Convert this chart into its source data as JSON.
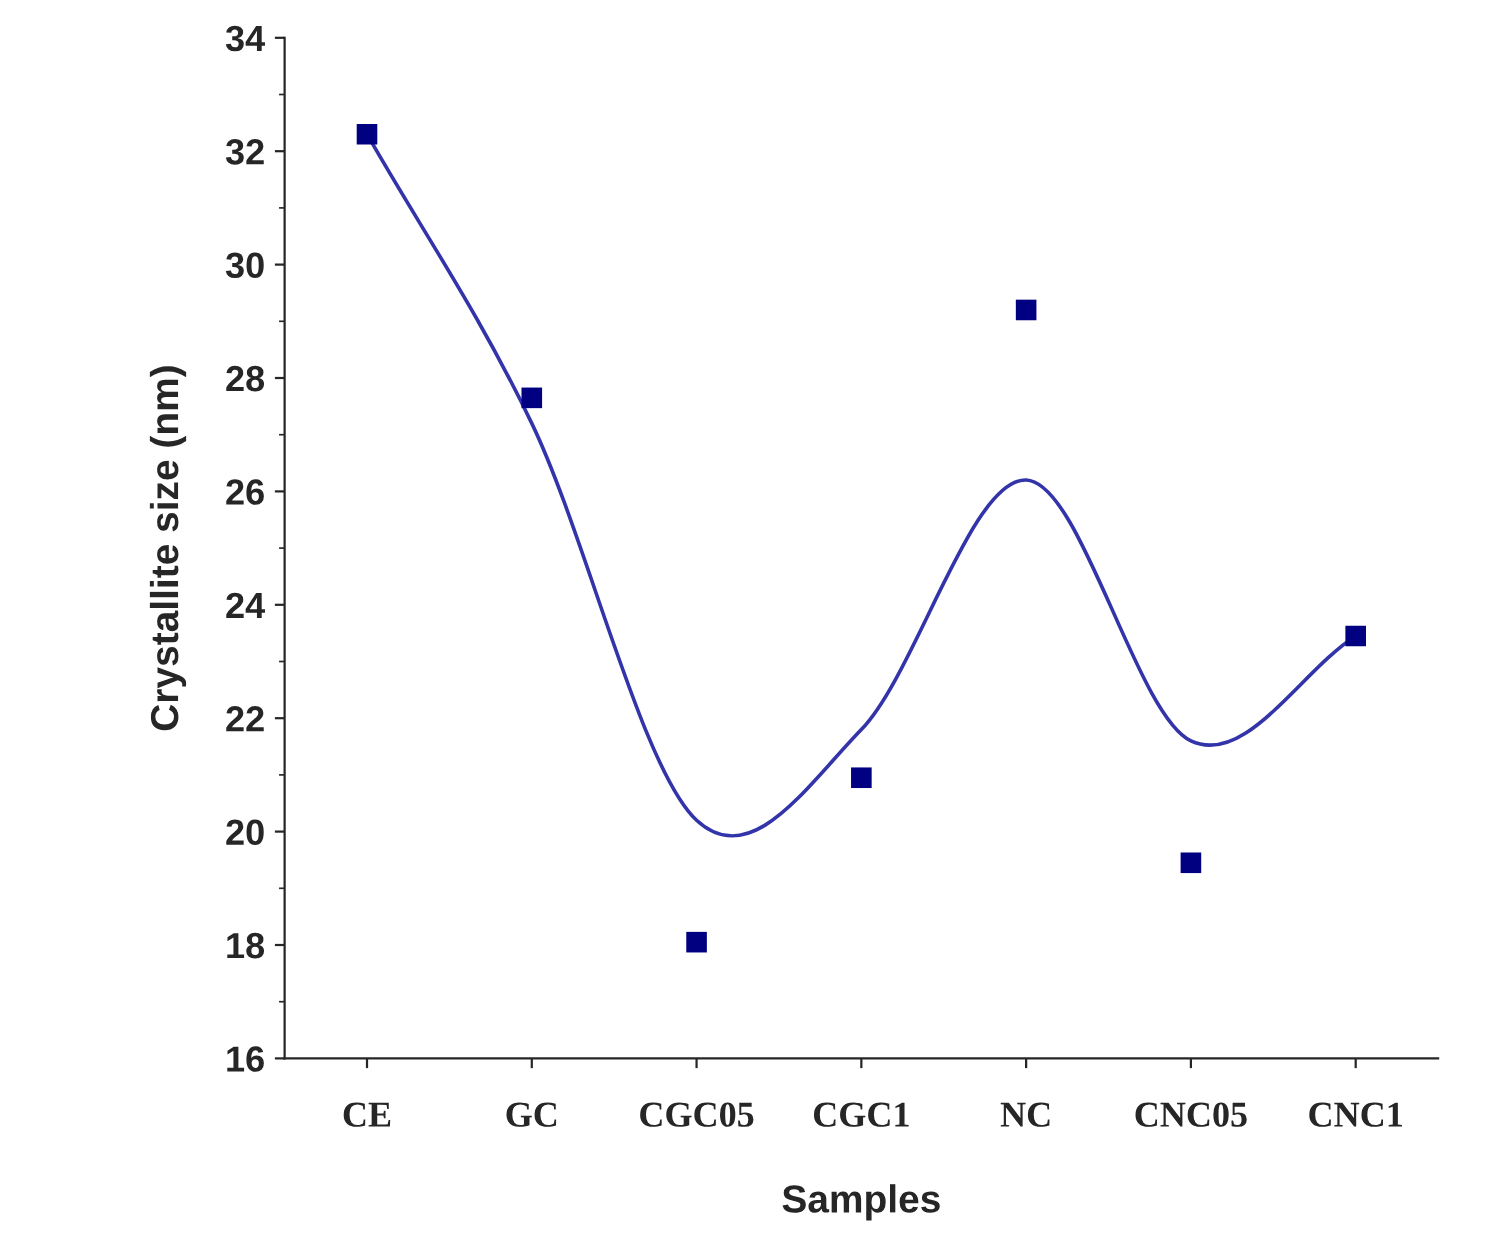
{
  "chart_data": {
    "type": "scatter",
    "xlabel": "Samples",
    "ylabel": "Crystallite size (nm)",
    "categories": [
      "CE",
      "GC",
      "CGC05",
      "CGC1",
      "NC",
      "CNC05",
      "CNC1"
    ],
    "series": [
      {
        "color": "#000080",
        "marker": "square",
        "values": [
          32.3,
          27.65,
          18.05,
          20.95,
          29.2,
          19.45,
          23.45
        ]
      },
      {
        "type": "line",
        "color": "#3333aa",
        "marker": "none",
        "line_style": "solid",
        "values": [
          32.3,
          27.2,
          20.2,
          21.8,
          26.2,
          21.6,
          23.45
        ]
      }
    ],
    "ylim": [
      16,
      34
    ],
    "yticks": [
      16,
      18,
      20,
      22,
      24,
      26,
      28,
      30,
      32,
      34
    ],
    "grid": false,
    "legend": false
  }
}
